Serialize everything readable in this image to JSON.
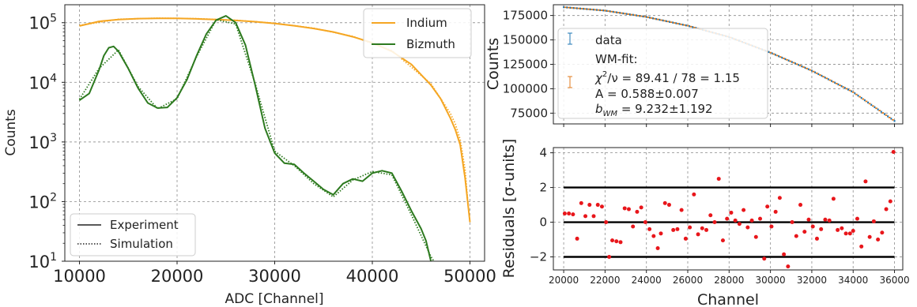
{
  "colors": {
    "indium": "#f5a623",
    "bizmuth": "#2d7a1f",
    "data": "#1f77b4",
    "fit": "#e07b1f",
    "residual": "#e8161b",
    "band": "#000000"
  },
  "chart_data": [
    {
      "id": "spectrum",
      "type": "line",
      "xlabel": "ADC [Channel]",
      "ylabel": "Counts",
      "xlim": [
        8500,
        51500
      ],
      "ylim": [
        10,
        200000
      ],
      "yscale": "log",
      "grid": true,
      "xticks": [
        10000,
        20000,
        30000,
        40000,
        50000
      ],
      "xtick_labels": [
        "10000",
        "20000",
        "30000",
        "40000",
        "50000"
      ],
      "yticks": [
        10,
        100,
        1000,
        10000,
        100000
      ],
      "ytick_labels": [
        {
          "base": "10",
          "exp": "1"
        },
        {
          "base": "10",
          "exp": "2"
        },
        {
          "base": "10",
          "exp": "3"
        },
        {
          "base": "10",
          "exp": "4"
        },
        {
          "base": "10",
          "exp": "5"
        }
      ],
      "series": [
        {
          "name": "Indium",
          "style": "solid",
          "x": [
            10000,
            12000,
            14000,
            16000,
            18000,
            20000,
            22000,
            24000,
            26000,
            28000,
            30000,
            32000,
            34000,
            36000,
            38000,
            40000,
            42000,
            44000,
            46000,
            47000,
            48000,
            48500,
            49000,
            49500,
            50000
          ],
          "y": [
            88000,
            105000,
            113000,
            117000,
            118000,
            118000,
            116000,
            113000,
            109000,
            104000,
            97000,
            89000,
            80000,
            70000,
            58000,
            46000,
            33000,
            20000,
            9000,
            5300,
            2500,
            1600,
            900,
            250,
            45
          ]
        },
        {
          "name": "Indium",
          "style": "dotted",
          "x": [
            10000,
            14000,
            18000,
            22000,
            26000,
            30000,
            34000,
            38000,
            42000,
            46000,
            48000,
            48500,
            49000,
            49500,
            49800
          ],
          "y": [
            90000,
            114000,
            119000,
            117000,
            110000,
            98000,
            81000,
            59000,
            34000,
            9500,
            3000,
            2000,
            1100,
            350,
            90
          ]
        },
        {
          "name": "Bizmuth",
          "style": "solid",
          "x": [
            10000,
            11000,
            12000,
            12500,
            13000,
            13500,
            14000,
            15000,
            16000,
            17000,
            18000,
            19000,
            20000,
            21000,
            22000,
            23000,
            24000,
            25000,
            26000,
            27000,
            28000,
            29000,
            30000,
            31000,
            32000,
            33000,
            34000,
            35000,
            36000,
            37000,
            38000,
            39000,
            40000,
            41000,
            42000,
            43000,
            44000,
            45000,
            45500,
            46000
          ],
          "y": [
            5000,
            6500,
            16000,
            28000,
            38000,
            40000,
            33000,
            17000,
            8000,
            4500,
            3700,
            3800,
            5500,
            11000,
            28000,
            65000,
            110000,
            130000,
            100000,
            42000,
            9000,
            1700,
            650,
            440,
            420,
            300,
            220,
            160,
            130,
            200,
            240,
            220,
            300,
            330,
            300,
            150,
            70,
            35,
            22,
            10
          ]
        },
        {
          "name": "Bizmuth",
          "style": "dotted",
          "x": [
            10000,
            12000,
            14000,
            16000,
            18000,
            20000,
            22000,
            24000,
            26000,
            28000,
            30000,
            32000,
            34000,
            36000,
            38000,
            40000,
            42000,
            44000,
            46000,
            46300
          ],
          "y": [
            5200,
            17000,
            35000,
            8500,
            3600,
            5300,
            27000,
            112000,
            95000,
            9500,
            700,
            400,
            200,
            120,
            230,
            320,
            280,
            60,
            12,
            10
          ]
        }
      ],
      "legends": [
        {
          "position": "upper right",
          "entries": [
            {
              "label": "Indium",
              "style": "solid",
              "series": "Indium"
            },
            {
              "label": "Bizmuth",
              "style": "solid",
              "series": "Bizmuth"
            }
          ]
        },
        {
          "position": "lower left",
          "entries": [
            {
              "label": "Experiment",
              "style": "solid"
            },
            {
              "label": "Simulation",
              "style": "dotted"
            }
          ]
        }
      ]
    },
    {
      "id": "fit",
      "type": "scatter",
      "ylabel": "Counts",
      "xlim": [
        19500,
        36400
      ],
      "ylim": [
        64000,
        186000
      ],
      "grid": true,
      "yticks": [
        75000,
        100000,
        125000,
        150000,
        175000
      ],
      "ytick_labels": [
        "75000",
        "100000",
        "125000",
        "150000",
        "175000"
      ],
      "series": [
        {
          "name": "data",
          "x_start": 20000,
          "x_end": 36000,
          "y_curve": [
            [
              20000,
              183500
            ],
            [
              22000,
              180000
            ],
            [
              24000,
              173500
            ],
            [
              26000,
              164500
            ],
            [
              28000,
              153000
            ],
            [
              30000,
              137000
            ],
            [
              32000,
              118500
            ],
            [
              34000,
              96500
            ],
            [
              36000,
              67000
            ]
          ]
        },
        {
          "name": "WM-fit",
          "x_start": 20000,
          "x_end": 36000,
          "y_curve": [
            [
              20000,
              183500
            ],
            [
              22000,
              180000
            ],
            [
              24000,
              173500
            ],
            [
              26000,
              164500
            ],
            [
              28000,
              153000
            ],
            [
              30000,
              137000
            ],
            [
              32000,
              118500
            ],
            [
              34000,
              96500
            ],
            [
              36000,
              67000
            ]
          ]
        }
      ],
      "legend": {
        "data_label": "data",
        "fit_label": "WM-fit:",
        "chi2_prefix": "χ",
        "chi2_sup": "2",
        "chi2_rest": "/ν = 89.41 / 78 =  1.15",
        "a_text": "A = 0.588±0.007",
        "b_prefix": "b",
        "b_sub": "WM",
        "b_rest": " = 9.232±1.192"
      }
    },
    {
      "id": "residuals",
      "type": "scatter",
      "xlabel": "Channel",
      "ylabel": "Residuals [σ-units]",
      "xlim": [
        19500,
        36400
      ],
      "ylim": [
        -2.75,
        4.3
      ],
      "grid": true,
      "xticks": [
        20000,
        22000,
        24000,
        26000,
        28000,
        30000,
        32000,
        34000,
        36000
      ],
      "xtick_labels": [
        "20000",
        "22000",
        "24000",
        "26000",
        "28000",
        "30000",
        "32000",
        "34000",
        "36000"
      ],
      "yticks": [
        -2,
        0,
        2,
        4
      ],
      "ytick_labels": [
        "−2",
        "0",
        "2",
        "4"
      ],
      "bands": [
        -2,
        0,
        2
      ],
      "points": [
        [
          20050,
          0.5
        ],
        [
          20250,
          0.5
        ],
        [
          20450,
          0.45
        ],
        [
          20650,
          -0.95
        ],
        [
          20850,
          1.1
        ],
        [
          21050,
          0.35
        ],
        [
          21250,
          1.0
        ],
        [
          21450,
          0.35
        ],
        [
          21650,
          1.0
        ],
        [
          21850,
          0.9
        ],
        [
          22050,
          0.0
        ],
        [
          22200,
          -2.0
        ],
        [
          22350,
          -1.05
        ],
        [
          22550,
          -1.1
        ],
        [
          22750,
          -1.15
        ],
        [
          22950,
          0.8
        ],
        [
          23150,
          0.75
        ],
        [
          23350,
          -0.25
        ],
        [
          23550,
          0.6
        ],
        [
          23750,
          0.85
        ],
        [
          23950,
          0.0
        ],
        [
          24150,
          -0.4
        ],
        [
          24350,
          -0.8
        ],
        [
          24550,
          -1.5
        ],
        [
          24700,
          -0.65
        ],
        [
          24900,
          1.1
        ],
        [
          25100,
          1.0
        ],
        [
          25300,
          -0.45
        ],
        [
          25500,
          -0.4
        ],
        [
          25700,
          0.7
        ],
        [
          25900,
          -0.95
        ],
        [
          26100,
          -0.3
        ],
        [
          26300,
          1.6
        ],
        [
          26500,
          -0.7
        ],
        [
          26700,
          -0.35
        ],
        [
          26900,
          -0.45
        ],
        [
          27100,
          0.4
        ],
        [
          27300,
          0.0
        ],
        [
          27500,
          2.5
        ],
        [
          27700,
          -1.05
        ],
        [
          27900,
          0.2
        ],
        [
          28100,
          0.55
        ],
        [
          28300,
          0.1
        ],
        [
          28500,
          -0.1
        ],
        [
          28700,
          0.7
        ],
        [
          28900,
          -0.3
        ],
        [
          29100,
          0.1
        ],
        [
          29300,
          -0.85
        ],
        [
          29500,
          0.2
        ],
        [
          29700,
          -2.1
        ],
        [
          29850,
          0.9
        ],
        [
          30050,
          -0.25
        ],
        [
          30250,
          0.6
        ],
        [
          30450,
          1.4
        ],
        [
          30650,
          -1.85
        ],
        [
          30850,
          -2.55
        ],
        [
          31050,
          0.0
        ],
        [
          31250,
          -0.8
        ],
        [
          31450,
          1.0
        ],
        [
          31650,
          -0.55
        ],
        [
          31850,
          0.15
        ],
        [
          32050,
          -0.25
        ],
        [
          32250,
          -0.95
        ],
        [
          32450,
          -0.4
        ],
        [
          32650,
          0.15
        ],
        [
          32850,
          0.1
        ],
        [
          33050,
          1.35
        ],
        [
          33250,
          -0.45
        ],
        [
          33450,
          -0.35
        ],
        [
          33650,
          -0.65
        ],
        [
          33850,
          -0.65
        ],
        [
          34000,
          -0.5
        ],
        [
          34200,
          0.2
        ],
        [
          34400,
          -1.4
        ],
        [
          34600,
          2.35
        ],
        [
          34800,
          -0.85
        ],
        [
          35000,
          0.05
        ],
        [
          35200,
          -1.0
        ],
        [
          35400,
          -0.6
        ],
        [
          35600,
          0.75
        ],
        [
          35800,
          1.2
        ],
        [
          35950,
          4.05
        ]
      ]
    }
  ]
}
